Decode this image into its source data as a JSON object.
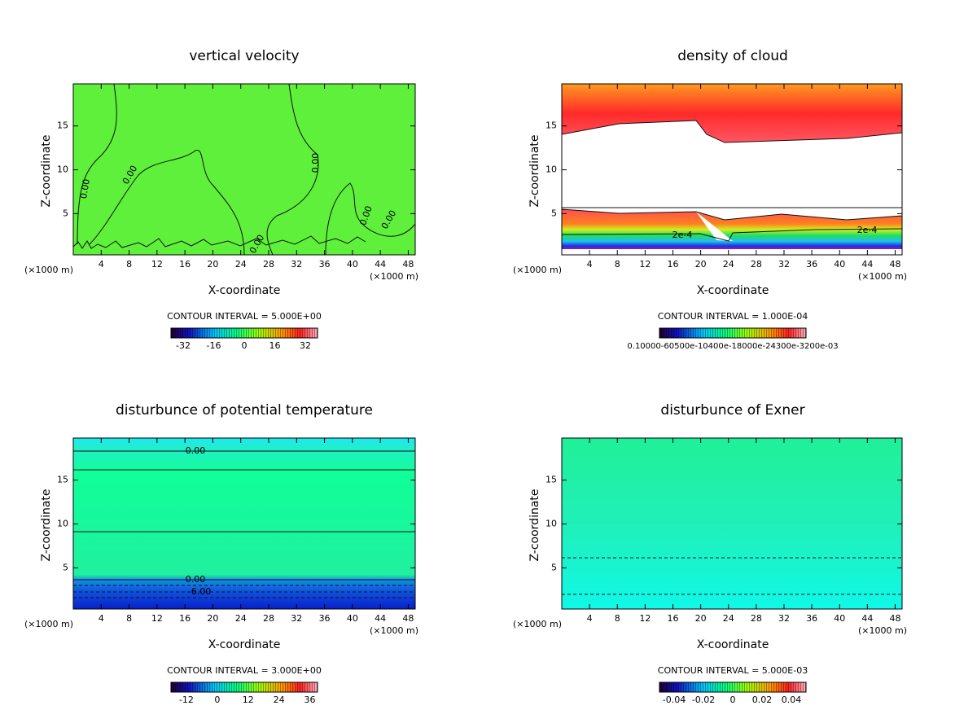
{
  "chart_data": [
    {
      "type": "contour",
      "title": "vertical velocity",
      "x_label": "X-coordinate",
      "y_label": "Z-coordinate",
      "x_unit": "(×1000 m)",
      "xlim": [
        0,
        49
      ],
      "ylim": [
        0.3,
        19.8
      ],
      "xticks": [
        4,
        8,
        12,
        16,
        20,
        24,
        28,
        32,
        36,
        40,
        44,
        48
      ],
      "yticks": [
        5,
        10,
        15
      ],
      "interval": "CONTOUR INTERVAL = 5.000E+00",
      "contour_labels": [
        "0.00",
        "0.00",
        "0.00",
        "0.00",
        "0.00",
        "0.00"
      ],
      "clim": [
        -38.4,
        38.4
      ],
      "cticks": [
        -32,
        -16,
        0,
        16,
        32
      ]
    },
    {
      "type": "contour",
      "title": "density of cloud",
      "x_label": "X-coordinate",
      "y_label": "Z-coordinate",
      "x_unit": "(×1000 m)",
      "xlim": [
        0,
        49
      ],
      "ylim": [
        0.3,
        19.8
      ],
      "xticks": [
        4,
        8,
        12,
        16,
        20,
        24,
        28,
        32,
        36,
        40,
        44,
        48
      ],
      "yticks": [
        5,
        10,
        15
      ],
      "interval": "CONTOUR INTERVAL = 1.000E-04",
      "contour_labels": [
        "2e-4",
        "2e-4"
      ],
      "colorbar_text": "0.10000-60500e-10400e-18000e-24300e-3200e-03"
    },
    {
      "type": "contour",
      "title": "disturbunce of potential temperature",
      "x_label": "X-coordinate",
      "y_label": "Z-coordinate",
      "x_unit": "(×1000 m)",
      "xlim": [
        0,
        49
      ],
      "ylim": [
        0.3,
        19.8
      ],
      "xticks": [
        4,
        8,
        12,
        16,
        20,
        24,
        28,
        32,
        36,
        40,
        44,
        48
      ],
      "yticks": [
        5,
        10,
        15
      ],
      "interval": "CONTOUR INTERVAL = 3.000E+00",
      "contour_labels": [
        "0.00",
        "0.00",
        "-6.00"
      ],
      "clim": [
        -18,
        39
      ],
      "cticks": [
        -12,
        0,
        12,
        24,
        36
      ]
    },
    {
      "type": "contour",
      "title": "disturbunce of Exner",
      "x_label": "X-coordinate",
      "y_label": "Z-coordinate",
      "x_unit": "(×1000 m)",
      "xlim": [
        0,
        49
      ],
      "ylim": [
        0.3,
        19.8
      ],
      "xticks": [
        4,
        8,
        12,
        16,
        20,
        24,
        28,
        32,
        36,
        40,
        44,
        48
      ],
      "yticks": [
        5,
        10,
        15
      ],
      "interval": "CONTOUR INTERVAL = 5.000E-03",
      "clim": [
        -0.05,
        0.05
      ],
      "cticks": [
        -0.04,
        -0.02,
        0,
        0.02,
        0.04
      ]
    }
  ]
}
